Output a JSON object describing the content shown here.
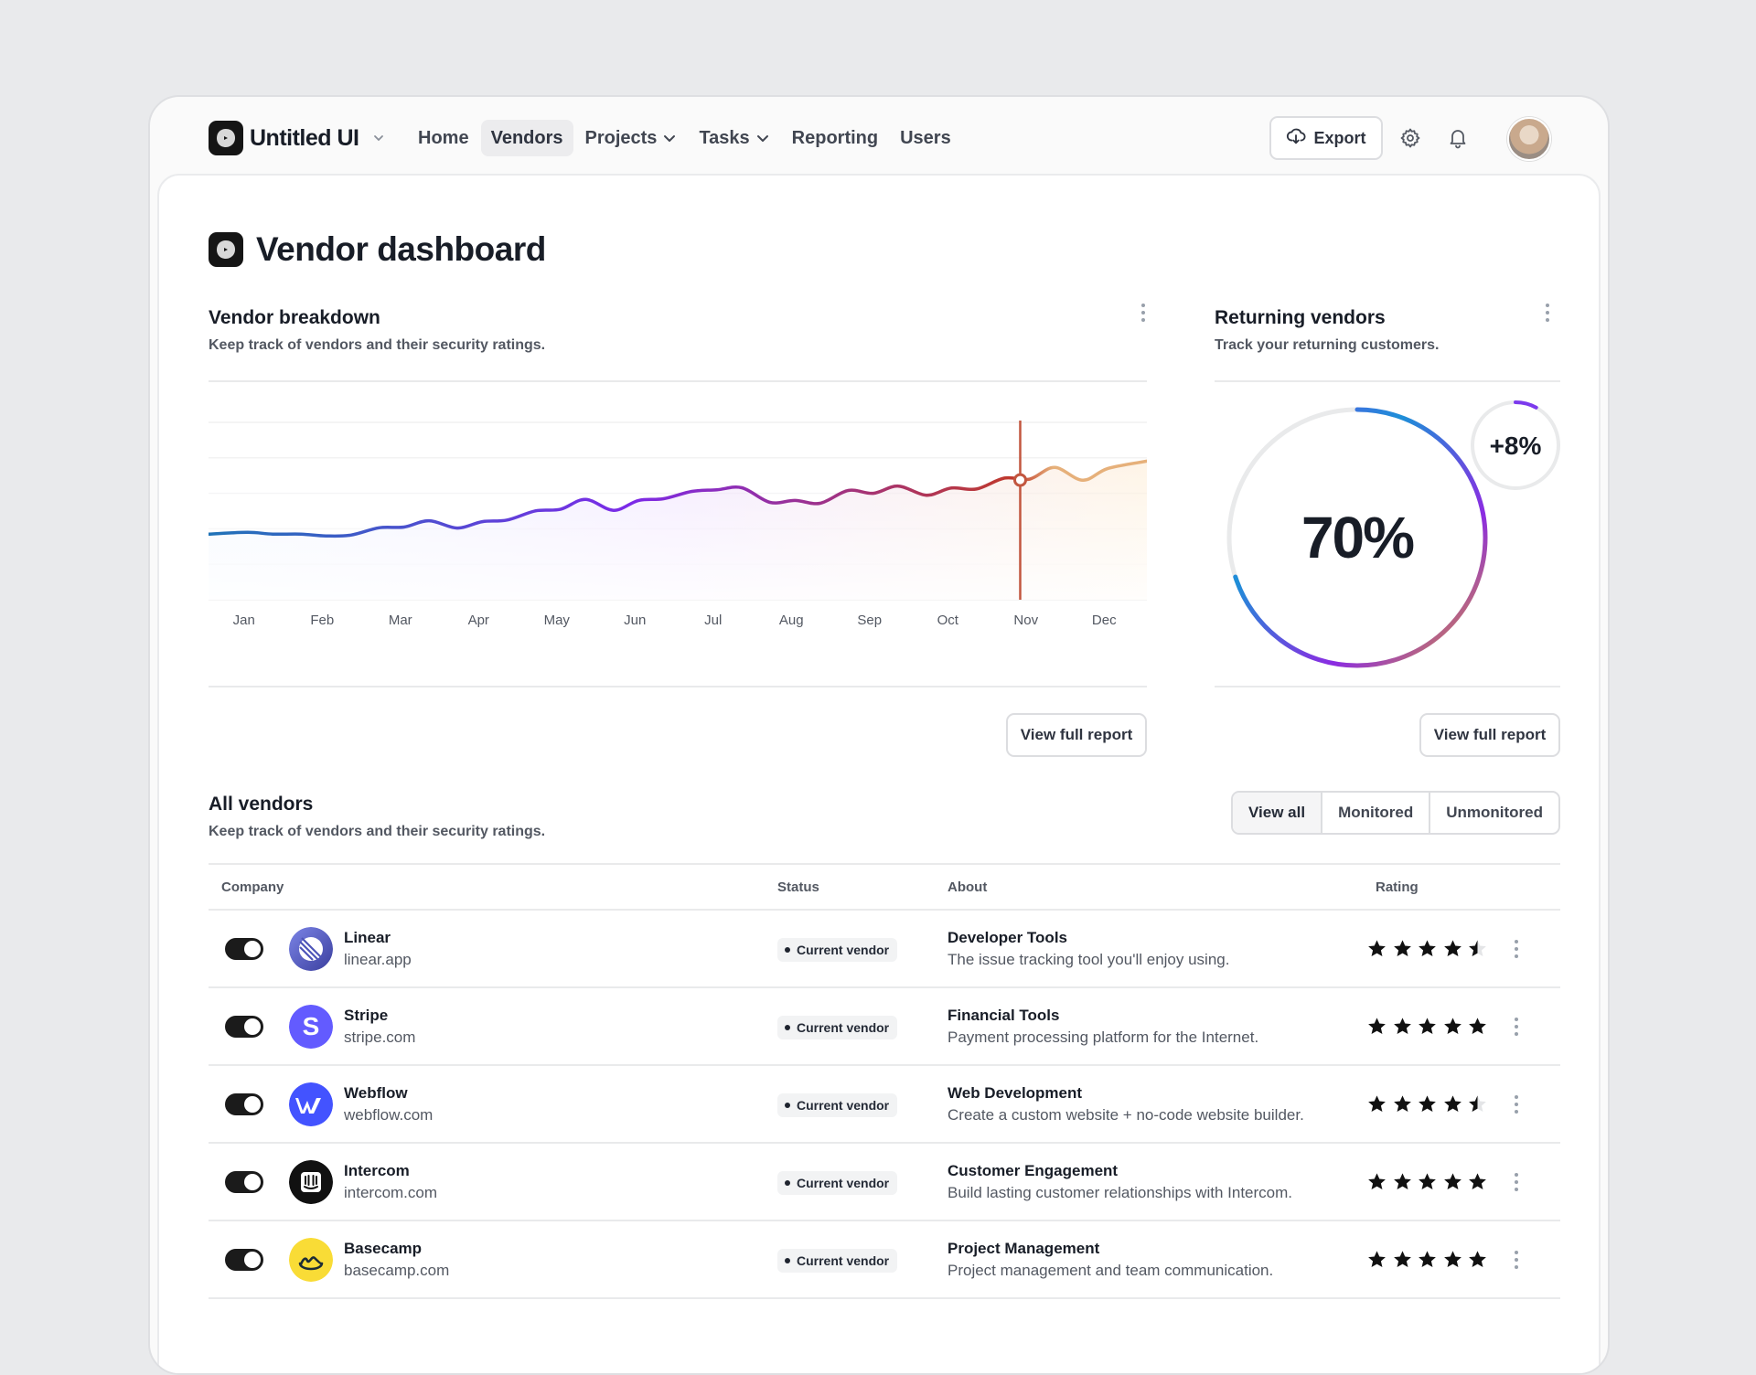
{
  "app": {
    "name": "Untitled UI"
  },
  "nav": {
    "items": [
      {
        "label": "Home",
        "active": false,
        "dropdown": false
      },
      {
        "label": "Vendors",
        "active": true,
        "dropdown": false
      },
      {
        "label": "Projects",
        "active": false,
        "dropdown": true
      },
      {
        "label": "Tasks",
        "active": false,
        "dropdown": true
      },
      {
        "label": "Reporting",
        "active": false,
        "dropdown": false
      },
      {
        "label": "Users",
        "active": false,
        "dropdown": false
      }
    ],
    "export_label": "Export"
  },
  "page": {
    "title": "Vendor dashboard"
  },
  "breakdown": {
    "title": "Vendor breakdown",
    "subtitle": "Keep track of vendors and their security ratings.",
    "view_label": "View full report"
  },
  "returning": {
    "title": "Returning vendors",
    "subtitle": "Track your returning customers.",
    "main_value": "70%",
    "main_fraction": 0.7,
    "delta_value": "+8%",
    "delta_fraction": 0.08,
    "view_label": "View full report"
  },
  "chart_data": {
    "type": "line",
    "categories": [
      "Jan",
      "Feb",
      "Mar",
      "Apr",
      "May",
      "Jun",
      "Jul",
      "Aug",
      "Sep",
      "Oct",
      "Nov",
      "Dec"
    ],
    "series": [
      {
        "values": [
          38,
          36,
          41,
          44,
          51,
          56,
          62,
          56,
          60,
          63,
          68,
          74
        ]
      }
    ],
    "highlight_category": "Nov",
    "ylim": [
      0,
      100
    ],
    "grid": true,
    "colors": [
      "#1f73b7",
      "#7c2ae8",
      "#c0392b",
      "#e6b07a"
    ]
  },
  "vendors": {
    "title": "All vendors",
    "subtitle": "Keep track of vendors and their security ratings.",
    "filters": [
      "View all",
      "Monitored",
      "Unmonitored"
    ],
    "columns": [
      "Company",
      "Status",
      "About",
      "Rating"
    ],
    "rows": [
      {
        "name": "Linear",
        "domain": "linear.app",
        "status": "Current vendor",
        "about_title": "Developer Tools",
        "about_desc": "The issue tracking tool you'll enjoy using.",
        "rating": 4.5,
        "logo": "linear-logo",
        "logo_color": "#5e6ad2"
      },
      {
        "name": "Stripe",
        "domain": "stripe.com",
        "status": "Current vendor",
        "about_title": "Financial Tools",
        "about_desc": "Payment processing platform for the Internet.",
        "rating": 5,
        "logo": "stripe-logo",
        "logo_color": "#635bff"
      },
      {
        "name": "Webflow",
        "domain": "webflow.com",
        "status": "Current vendor",
        "about_title": "Web Development",
        "about_desc": "Create a custom website + no-code website builder.",
        "rating": 4.5,
        "logo": "webflow-logo",
        "logo_color": "#4353ff"
      },
      {
        "name": "Intercom",
        "domain": "intercom.com",
        "status": "Current vendor",
        "about_title": "Customer Engagement",
        "about_desc": "Build lasting customer relationships with Intercom.",
        "rating": 5,
        "logo": "intercom-logo",
        "logo_color": "#111111"
      },
      {
        "name": "Basecamp",
        "domain": "basecamp.com",
        "status": "Current vendor",
        "about_title": "Project Management",
        "about_desc": "Project management and team communication.",
        "rating": 5,
        "logo": "basecamp-logo",
        "logo_color": "#f9dc36"
      }
    ]
  }
}
